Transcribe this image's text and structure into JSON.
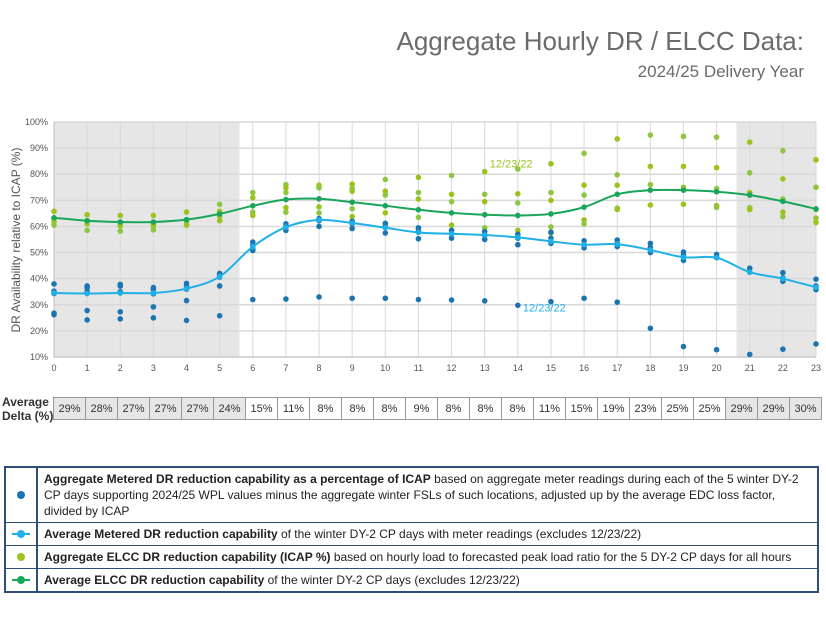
{
  "header": {
    "title": "Aggregate Hourly DR / ELCC Data:",
    "subtitle": "2024/25 Delivery Year"
  },
  "colors": {
    "metered_points": "#1a75b0",
    "metered_avg": "#1fb0e8",
    "elcc_points": "#9bc31c",
    "elcc_points_light": "#8dc63f",
    "elcc_avg": "#1aa65a",
    "shade": "#e6e6e6",
    "grid": "#d9d9d9",
    "legend_border": "#2f4f7a"
  },
  "chart_data": {
    "type": "scatter",
    "title": "Aggregate Hourly DR / ELCC Data: 2024/25 Delivery Year",
    "xlabel": "",
    "ylabel": "DR Availability relative to ICAP (%)",
    "ylim": [
      10,
      100
    ],
    "xlim": [
      0,
      23
    ],
    "y_ticks": [
      "10%",
      "20%",
      "30%",
      "40%",
      "50%",
      "60%",
      "70%",
      "80%",
      "90%",
      "100%"
    ],
    "x_ticks": [
      "0",
      "1",
      "2",
      "3",
      "4",
      "5",
      "6",
      "7",
      "8",
      "9",
      "10",
      "11",
      "12",
      "13",
      "14",
      "15",
      "16",
      "17",
      "18",
      "19",
      "20",
      "21",
      "22",
      "23"
    ],
    "grid": true,
    "shaded_hour_ranges": [
      [
        0,
        5.6
      ],
      [
        20.6,
        23
      ]
    ],
    "annotations": [
      {
        "text": "12/23/22",
        "series": "elcc",
        "x": 13.8,
        "y": 82.5
      },
      {
        "text": "12/23/22",
        "series": "metered",
        "x": 14.8,
        "y": 27.5
      }
    ],
    "series": [
      {
        "name": "Average Metered DR reduction capability",
        "kind": "line",
        "x": [
          0,
          1,
          2,
          3,
          4,
          5,
          6,
          7,
          8,
          9,
          10,
          11,
          12,
          13,
          14,
          15,
          16,
          17,
          18,
          19,
          20,
          21,
          22,
          23
        ],
        "values": [
          34.5,
          34.3,
          34.5,
          34.5,
          36.2,
          40.8,
          52.2,
          59.7,
          62.5,
          61.3,
          59.5,
          57.7,
          57.2,
          56.7,
          55.8,
          54.3,
          53.0,
          53.2,
          51.0,
          48.2,
          48.0,
          42.5,
          40.0,
          36.7
        ]
      },
      {
        "name": "Average ELCC DR reduction capability",
        "kind": "line",
        "x": [
          0,
          1,
          2,
          3,
          4,
          5,
          6,
          7,
          8,
          9,
          10,
          11,
          12,
          13,
          14,
          15,
          16,
          17,
          18,
          19,
          20,
          21,
          22,
          23
        ],
        "values": [
          63.3,
          62.2,
          61.7,
          61.7,
          62.6,
          64.8,
          67.9,
          70.3,
          70.6,
          69.3,
          67.9,
          66.4,
          65.2,
          64.5,
          64.2,
          64.8,
          67.4,
          72.3,
          73.9,
          73.9,
          73.3,
          72.0,
          69.6,
          66.7
        ]
      },
      {
        "name": "Aggregate Metered DR reduction capability as a percentage of ICAP",
        "kind": "scatter",
        "points": [
          [
            0,
            38.0
          ],
          [
            0,
            35.2
          ],
          [
            0,
            34.3
          ],
          [
            0,
            26.8
          ],
          [
            0,
            26.2
          ],
          [
            1,
            37.2
          ],
          [
            1,
            36.5
          ],
          [
            1,
            35.0
          ],
          [
            1,
            27.8
          ],
          [
            1,
            24.2
          ],
          [
            2,
            37.8
          ],
          [
            2,
            37.2
          ],
          [
            2,
            35.0
          ],
          [
            2,
            27.3
          ],
          [
            2,
            24.6
          ],
          [
            3,
            36.6
          ],
          [
            3,
            35.8
          ],
          [
            3,
            34.2
          ],
          [
            3,
            29.2
          ],
          [
            3,
            25.0
          ],
          [
            4,
            38.2
          ],
          [
            4,
            37.0
          ],
          [
            4,
            36.0
          ],
          [
            4,
            31.6
          ],
          [
            4,
            24.0
          ],
          [
            5,
            42.0
          ],
          [
            5,
            41.3
          ],
          [
            5,
            40.6
          ],
          [
            5,
            37.2
          ],
          [
            5,
            25.8
          ],
          [
            6,
            54.0
          ],
          [
            6,
            52.8
          ],
          [
            6,
            51.5
          ],
          [
            6,
            50.8
          ],
          [
            6,
            32.0
          ],
          [
            7,
            61.0
          ],
          [
            7,
            60.0
          ],
          [
            7,
            58.5
          ],
          [
            7,
            32.2
          ],
          [
            8,
            63.0
          ],
          [
            8,
            62.2
          ],
          [
            8,
            60.0
          ],
          [
            8,
            33.0
          ],
          [
            9,
            62.0
          ],
          [
            9,
            61.0
          ],
          [
            9,
            59.2
          ],
          [
            9,
            32.5
          ],
          [
            10,
            61.2
          ],
          [
            10,
            59.8
          ],
          [
            10,
            57.5
          ],
          [
            10,
            32.5
          ],
          [
            11,
            59.5
          ],
          [
            11,
            58.2
          ],
          [
            11,
            55.3
          ],
          [
            11,
            32.0
          ],
          [
            12,
            58.5
          ],
          [
            12,
            57.2
          ],
          [
            12,
            55.5
          ],
          [
            12,
            31.8
          ],
          [
            13,
            58.0
          ],
          [
            13,
            56.5
          ],
          [
            13,
            55.0
          ],
          [
            13,
            31.5
          ],
          [
            14,
            57.0
          ],
          [
            14,
            55.5
          ],
          [
            14,
            53.0
          ],
          [
            14,
            29.8
          ],
          [
            15,
            57.8
          ],
          [
            15,
            55.5
          ],
          [
            15,
            53.5
          ],
          [
            15,
            31.2
          ],
          [
            16,
            54.5
          ],
          [
            16,
            53.0
          ],
          [
            16,
            51.8
          ],
          [
            16,
            32.5
          ],
          [
            17,
            54.8
          ],
          [
            17,
            53.5
          ],
          [
            17,
            52.3
          ],
          [
            17,
            31.0
          ],
          [
            18,
            53.5
          ],
          [
            18,
            52.0
          ],
          [
            18,
            50.0
          ],
          [
            18,
            21.0
          ],
          [
            19,
            50.2
          ],
          [
            19,
            49.0
          ],
          [
            19,
            47.0
          ],
          [
            19,
            14.0
          ],
          [
            20,
            49.3
          ],
          [
            20,
            48.2
          ],
          [
            20,
            12.8
          ],
          [
            21,
            44.0
          ],
          [
            21,
            42.5
          ],
          [
            21,
            11.0
          ],
          [
            22,
            42.3
          ],
          [
            22,
            40.3
          ],
          [
            22,
            39.0
          ],
          [
            22,
            13.0
          ],
          [
            23,
            39.8
          ],
          [
            23,
            37.2
          ],
          [
            23,
            35.8
          ],
          [
            23,
            15.0
          ]
        ]
      },
      {
        "name": "Aggregate ELCC DR reduction capability (ICAP %)",
        "kind": "scatter",
        "points": [
          [
            0,
            65.8
          ],
          [
            0,
            63.0
          ],
          [
            0,
            61.8
          ],
          [
            0,
            60.5
          ],
          [
            1,
            64.5
          ],
          [
            1,
            61.8
          ],
          [
            1,
            61.0
          ],
          [
            1,
            58.5
          ],
          [
            2,
            64.2
          ],
          [
            2,
            61.0
          ],
          [
            2,
            60.2
          ],
          [
            2,
            58.2
          ],
          [
            3,
            64.2
          ],
          [
            3,
            61.0
          ],
          [
            3,
            60.2
          ],
          [
            3,
            58.7
          ],
          [
            4,
            65.5
          ],
          [
            4,
            61.8
          ],
          [
            4,
            60.5
          ],
          [
            5,
            68.5
          ],
          [
            5,
            65.8
          ],
          [
            5,
            63.8
          ],
          [
            5,
            62.2
          ],
          [
            6,
            73.0
          ],
          [
            6,
            71.0
          ],
          [
            6,
            65.5
          ],
          [
            6,
            64.2
          ],
          [
            7,
            76.0
          ],
          [
            7,
            74.8
          ],
          [
            7,
            73.0
          ],
          [
            7,
            67.2
          ],
          [
            7,
            65.5
          ],
          [
            8,
            75.8
          ],
          [
            8,
            74.8
          ],
          [
            8,
            67.5
          ],
          [
            8,
            65.2
          ],
          [
            9,
            76.2
          ],
          [
            9,
            74.5
          ],
          [
            9,
            73.5
          ],
          [
            9,
            66.8
          ],
          [
            9,
            63.8
          ],
          [
            10,
            78.0
          ],
          [
            10,
            73.5
          ],
          [
            10,
            72.0
          ],
          [
            10,
            65.2
          ],
          [
            10,
            60.5
          ],
          [
            11,
            78.8
          ],
          [
            11,
            73.0
          ],
          [
            11,
            70.5
          ],
          [
            11,
            63.5
          ],
          [
            11,
            59.0
          ],
          [
            12,
            79.5
          ],
          [
            12,
            72.3
          ],
          [
            12,
            69.5
          ],
          [
            12,
            60.5
          ],
          [
            12,
            57.5
          ],
          [
            13,
            81.0
          ],
          [
            13,
            72.3
          ],
          [
            13,
            69.5
          ],
          [
            13,
            59.5
          ],
          [
            13,
            57.0
          ],
          [
            14,
            82.0
          ],
          [
            14,
            72.5
          ],
          [
            14,
            69.0
          ],
          [
            14,
            58.5
          ],
          [
            14,
            56.0
          ],
          [
            15,
            84.0
          ],
          [
            15,
            73.0
          ],
          [
            15,
            70.0
          ],
          [
            15,
            59.8
          ],
          [
            15,
            57.5
          ],
          [
            16,
            88.0
          ],
          [
            16,
            75.8
          ],
          [
            16,
            72.0
          ],
          [
            16,
            62.5
          ],
          [
            16,
            61.0
          ],
          [
            17,
            93.5
          ],
          [
            17,
            79.8
          ],
          [
            17,
            75.8
          ],
          [
            17,
            67.0
          ],
          [
            17,
            66.5
          ],
          [
            18,
            95.0
          ],
          [
            18,
            83.0
          ],
          [
            18,
            76.0
          ],
          [
            18,
            68.2
          ],
          [
            19,
            94.5
          ],
          [
            19,
            83.0
          ],
          [
            19,
            75.0
          ],
          [
            19,
            68.5
          ],
          [
            20,
            94.2
          ],
          [
            20,
            82.5
          ],
          [
            20,
            74.5
          ],
          [
            20,
            68.0
          ],
          [
            20,
            67.3
          ],
          [
            21,
            92.3
          ],
          [
            21,
            80.5
          ],
          [
            21,
            73.0
          ],
          [
            21,
            67.2
          ],
          [
            21,
            66.5
          ],
          [
            22,
            89.0
          ],
          [
            22,
            78.2
          ],
          [
            22,
            70.5
          ],
          [
            22,
            65.5
          ],
          [
            22,
            63.8
          ],
          [
            23,
            85.5
          ],
          [
            23,
            75.0
          ],
          [
            23,
            66.5
          ],
          [
            23,
            63.2
          ],
          [
            23,
            61.5
          ]
        ]
      }
    ]
  },
  "delta_row": {
    "label_line1": "Average",
    "label_line2": "Delta (%)",
    "values": [
      "29%",
      "28%",
      "27%",
      "27%",
      "27%",
      "24%",
      "15%",
      "11%",
      "8%",
      "8%",
      "8%",
      "9%",
      "8%",
      "8%",
      "8%",
      "11%",
      "15%",
      "19%",
      "23%",
      "25%",
      "25%",
      "29%",
      "29%",
      "30%"
    ],
    "shaded": [
      true,
      true,
      true,
      true,
      true,
      true,
      false,
      false,
      false,
      false,
      false,
      false,
      false,
      false,
      false,
      false,
      false,
      false,
      false,
      false,
      false,
      true,
      true,
      true
    ]
  },
  "legend": {
    "items": [
      {
        "bold": "Aggregate Metered DR reduction capability as a percentage of ICAP",
        "rest": " based on aggregate meter readings during each of the 5 winter DY-2 CP days supporting 2024/25 WPL values minus the aggregate winter FSLs of such locations, adjusted up by the average EDC loss factor, divided by ICAP",
        "icon": "dot-blue-icon"
      },
      {
        "bold": "Average Metered DR reduction capability",
        "rest": " of the winter DY-2 CP days with meter readings (excludes 12/23/22)",
        "icon": "line-light-blue-icon"
      },
      {
        "bold": "Aggregate ELCC DR reduction capability (ICAP %)",
        "rest": " based on hourly load to forecasted peak load ratio for the 5 DY-2 CP days for all hours",
        "icon": "dot-lime-icon"
      },
      {
        "bold": "Average ELCC DR reduction capability",
        "rest": " of the winter DY-2 CP days (excludes 12/23/22)",
        "icon": "line-green-icon"
      }
    ]
  }
}
